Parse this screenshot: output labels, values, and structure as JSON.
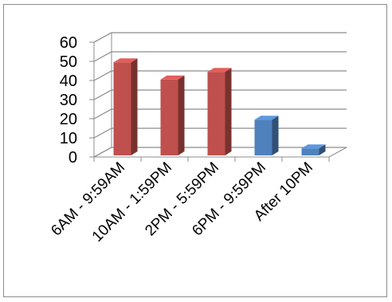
{
  "chart_data": {
    "type": "bar",
    "categories": [
      "6AM - 9:59AM",
      "10AM - 1:59PM",
      "2PM - 5:59PM",
      "6PM - 9:59PM",
      "After 10PM"
    ],
    "values": [
      52,
      43,
      47,
      22,
      7
    ],
    "ylim": [
      0,
      60
    ],
    "yticks": [
      0,
      10,
      20,
      30,
      40,
      50,
      60
    ],
    "grid": true,
    "style": "3d-column",
    "bar_colors": [
      "#c0504d",
      "#c0504d",
      "#c0504d",
      "#4f81bd",
      "#4f81bd"
    ],
    "legend": "none"
  }
}
